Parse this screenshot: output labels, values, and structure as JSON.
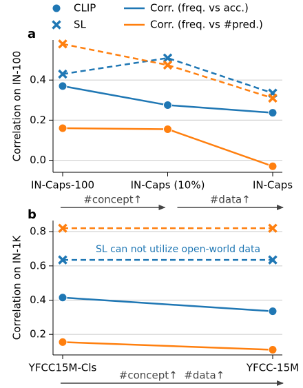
{
  "legend": {
    "markers": [
      {
        "label": "CLIP",
        "marker": "circle"
      },
      {
        "label": "SL",
        "marker": "x"
      }
    ],
    "lines": [
      {
        "label": "Corr. (freq. vs acc.)",
        "color": "#1f77b4"
      },
      {
        "label": "Corr. (freq. vs #pred.)",
        "color": "#ff7f0e"
      }
    ]
  },
  "chart_data": [
    {
      "type": "line",
      "panel_label": "a",
      "ylabel": "Correlation on IN-100",
      "categories": [
        "IN-Caps-100",
        "IN-Caps (10%)",
        "IN-Caps"
      ],
      "ylim": [
        -0.06,
        0.6
      ],
      "yticks": [
        {
          "value": 0,
          "label": "0.0"
        },
        0.2,
        0.4
      ],
      "grid": true,
      "series": [
        {
          "marker": "circle",
          "dashed": false,
          "color": "#1f77b4",
          "values": [
            0.37,
            0.275,
            0.237
          ]
        },
        {
          "marker": "circle",
          "dashed": false,
          "color": "#ff7f0e",
          "values": [
            0.16,
            0.155,
            -0.03
          ]
        },
        {
          "marker": "x",
          "dashed": true,
          "color": "#1f77b4",
          "values": [
            0.43,
            0.51,
            0.335
          ]
        },
        {
          "marker": "x",
          "dashed": true,
          "color": "#ff7f0e",
          "values": [
            0.58,
            0.475,
            0.31
          ]
        }
      ],
      "arrow_labels": [
        "#concept↑",
        "#data↑"
      ]
    },
    {
      "type": "line",
      "panel_label": "b",
      "ylabel": "Correlation on IN-1K",
      "categories": [
        "YFCC15M-Cls",
        "YFCC-15M"
      ],
      "ylim": [
        0.08,
        0.865
      ],
      "yticks": [
        0.2,
        0.4,
        0.6,
        0.8
      ],
      "grid": true,
      "series": [
        {
          "marker": "circle",
          "dashed": false,
          "color": "#1f77b4",
          "values": [
            0.415,
            0.335
          ]
        },
        {
          "marker": "circle",
          "dashed": false,
          "color": "#ff7f0e",
          "values": [
            0.155,
            0.11
          ]
        },
        {
          "marker": "x",
          "dashed": true,
          "color": "#1f77b4",
          "values": [
            0.635,
            0.635
          ]
        },
        {
          "marker": "x",
          "dashed": true,
          "color": "#ff7f0e",
          "values": [
            0.82,
            0.82
          ]
        }
      ],
      "note": "SL can not utilize open-world data",
      "arrow_labels": [
        "#concept↑  #data↑"
      ]
    }
  ]
}
